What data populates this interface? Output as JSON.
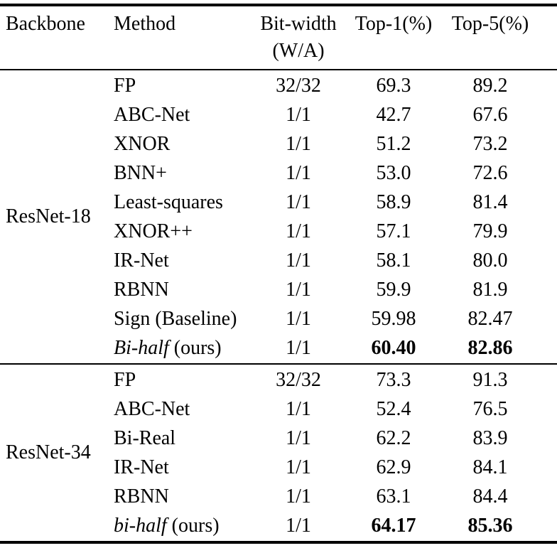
{
  "table": {
    "headers": {
      "backbone": "Backbone",
      "method": "Method",
      "bitwidth_line1": "Bit-width",
      "bitwidth_line2": "(W/A)",
      "top1": "Top-1(%)",
      "top5": "Top-5(%)"
    },
    "sections": [
      {
        "backbone": "ResNet-18",
        "rows": [
          {
            "method": "FP",
            "bitwidth": "32/32",
            "top1": "69.3",
            "top5": "89.2"
          },
          {
            "method": "ABC-Net",
            "bitwidth": "1/1",
            "top1": "42.7",
            "top5": "67.6"
          },
          {
            "method": "XNOR",
            "bitwidth": "1/1",
            "top1": "51.2",
            "top5": "73.2"
          },
          {
            "method": "BNN+",
            "bitwidth": "1/1",
            "top1": "53.0",
            "top5": "72.6"
          },
          {
            "method": "Least-squares",
            "bitwidth": "1/1",
            "top1": "58.9",
            "top5": "81.4"
          },
          {
            "method": "XNOR++",
            "bitwidth": "1/1",
            "top1": "57.1",
            "top5": "79.9"
          },
          {
            "method": "IR-Net",
            "bitwidth": "1/1",
            "top1": "58.1",
            "top5": "80.0"
          },
          {
            "method": "RBNN",
            "bitwidth": "1/1",
            "top1": "59.9",
            "top5": "81.9"
          },
          {
            "method": "Sign (Baseline)",
            "bitwidth": "1/1",
            "top1": "59.98",
            "top5": "82.47"
          },
          {
            "method_italic": "Bi-half",
            "method": " (ours)",
            "bitwidth": "1/1",
            "top1": "60.40",
            "top5": "82.86",
            "bold": true
          }
        ]
      },
      {
        "backbone": "ResNet-34",
        "rows": [
          {
            "method": "FP",
            "bitwidth": "32/32",
            "top1": "73.3",
            "top5": "91.3"
          },
          {
            "method": "ABC-Net",
            "bitwidth": "1/1",
            "top1": "52.4",
            "top5": "76.5"
          },
          {
            "method": "Bi-Real",
            "bitwidth": "1/1",
            "top1": "62.2",
            "top5": "83.9"
          },
          {
            "method": "IR-Net",
            "bitwidth": "1/1",
            "top1": "62.9",
            "top5": "84.1"
          },
          {
            "method": "RBNN",
            "bitwidth": "1/1",
            "top1": "63.1",
            "top5": "84.4"
          },
          {
            "method_italic": "bi-half",
            "method": " (ours)",
            "bitwidth": "1/1",
            "top1": "64.17",
            "top5": "85.36",
            "bold": true
          }
        ]
      }
    ]
  }
}
